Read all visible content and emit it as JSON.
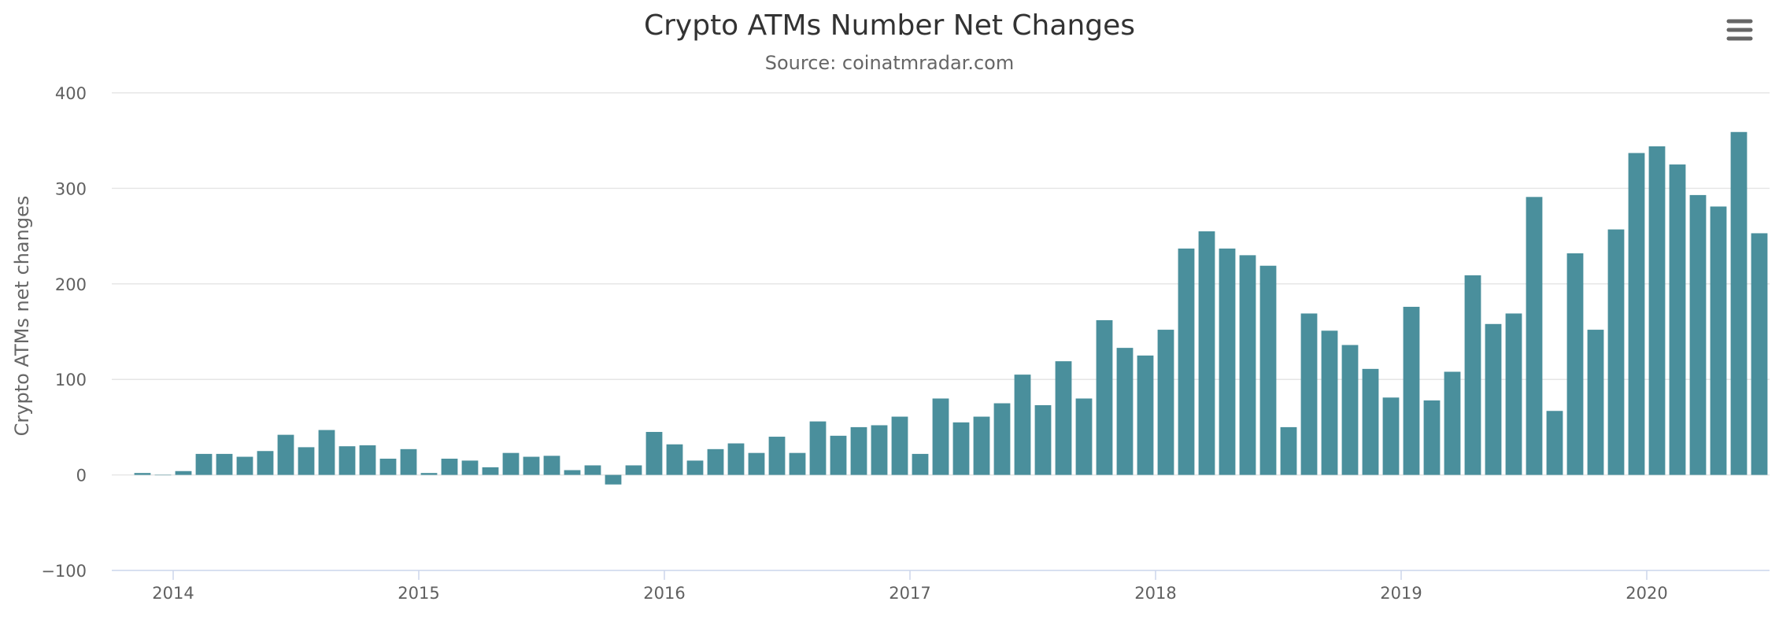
{
  "chart_data": {
    "type": "bar",
    "title": "Crypto ATMs Number Net Changes",
    "subtitle": "Source: coinatmradar.com",
    "xlabel": "",
    "ylabel": "Crypto ATMs net changes",
    "ylim": [
      -100,
      400
    ],
    "yticks": [
      -100,
      0,
      100,
      200,
      300,
      400
    ],
    "x_tick_labels": [
      "2014",
      "2015",
      "2016",
      "2017",
      "2018",
      "2019",
      "2020"
    ],
    "x_start": "2013-10",
    "x_end": "2020-07",
    "grid": true,
    "legend": "none",
    "bar_color": "#4a8f9c",
    "series": [
      {
        "x": [
          "2013-11",
          "2013-12",
          "2014-01",
          "2014-02",
          "2014-03",
          "2014-04",
          "2014-05",
          "2014-06",
          "2014-07",
          "2014-08",
          "2014-09",
          "2014-10",
          "2014-11",
          "2014-12",
          "2015-01",
          "2015-02",
          "2015-03",
          "2015-04",
          "2015-05",
          "2015-06",
          "2015-07",
          "2015-08",
          "2015-09",
          "2015-10",
          "2015-11",
          "2015-12",
          "2016-01",
          "2016-02",
          "2016-03",
          "2016-04",
          "2016-05",
          "2016-06",
          "2016-07",
          "2016-08",
          "2016-09",
          "2016-10",
          "2016-11",
          "2016-12",
          "2017-01",
          "2017-02",
          "2017-03",
          "2017-04",
          "2017-05",
          "2017-06",
          "2017-07",
          "2017-08",
          "2017-09",
          "2017-10",
          "2017-11",
          "2017-12",
          "2018-01",
          "2018-02",
          "2018-03",
          "2018-04",
          "2018-05",
          "2018-06",
          "2018-07",
          "2018-08",
          "2018-09",
          "2018-10",
          "2018-11",
          "2018-12",
          "2019-01",
          "2019-02",
          "2019-03",
          "2019-04",
          "2019-05",
          "2019-06",
          "2019-07",
          "2019-08",
          "2019-09",
          "2019-10",
          "2019-11",
          "2019-12",
          "2020-01",
          "2020-02",
          "2020-03",
          "2020-04",
          "2020-05",
          "2020-06"
        ],
        "values": [
          2,
          0,
          4,
          22,
          22,
          19,
          25,
          42,
          29,
          47,
          30,
          31,
          17,
          27,
          2,
          17,
          15,
          8,
          23,
          19,
          20,
          5,
          10,
          -10,
          10,
          45,
          32,
          15,
          27,
          33,
          23,
          40,
          23,
          56,
          41,
          50,
          52,
          61,
          22,
          80,
          55,
          61,
          75,
          105,
          73,
          119,
          80,
          162,
          133,
          125,
          152,
          237,
          255,
          237,
          230,
          219,
          50,
          169,
          151,
          136,
          111,
          81,
          176,
          78,
          108,
          209,
          158,
          169,
          291,
          67,
          232,
          152,
          257,
          337,
          344,
          325,
          293,
          281,
          359,
          253
        ]
      }
    ]
  }
}
